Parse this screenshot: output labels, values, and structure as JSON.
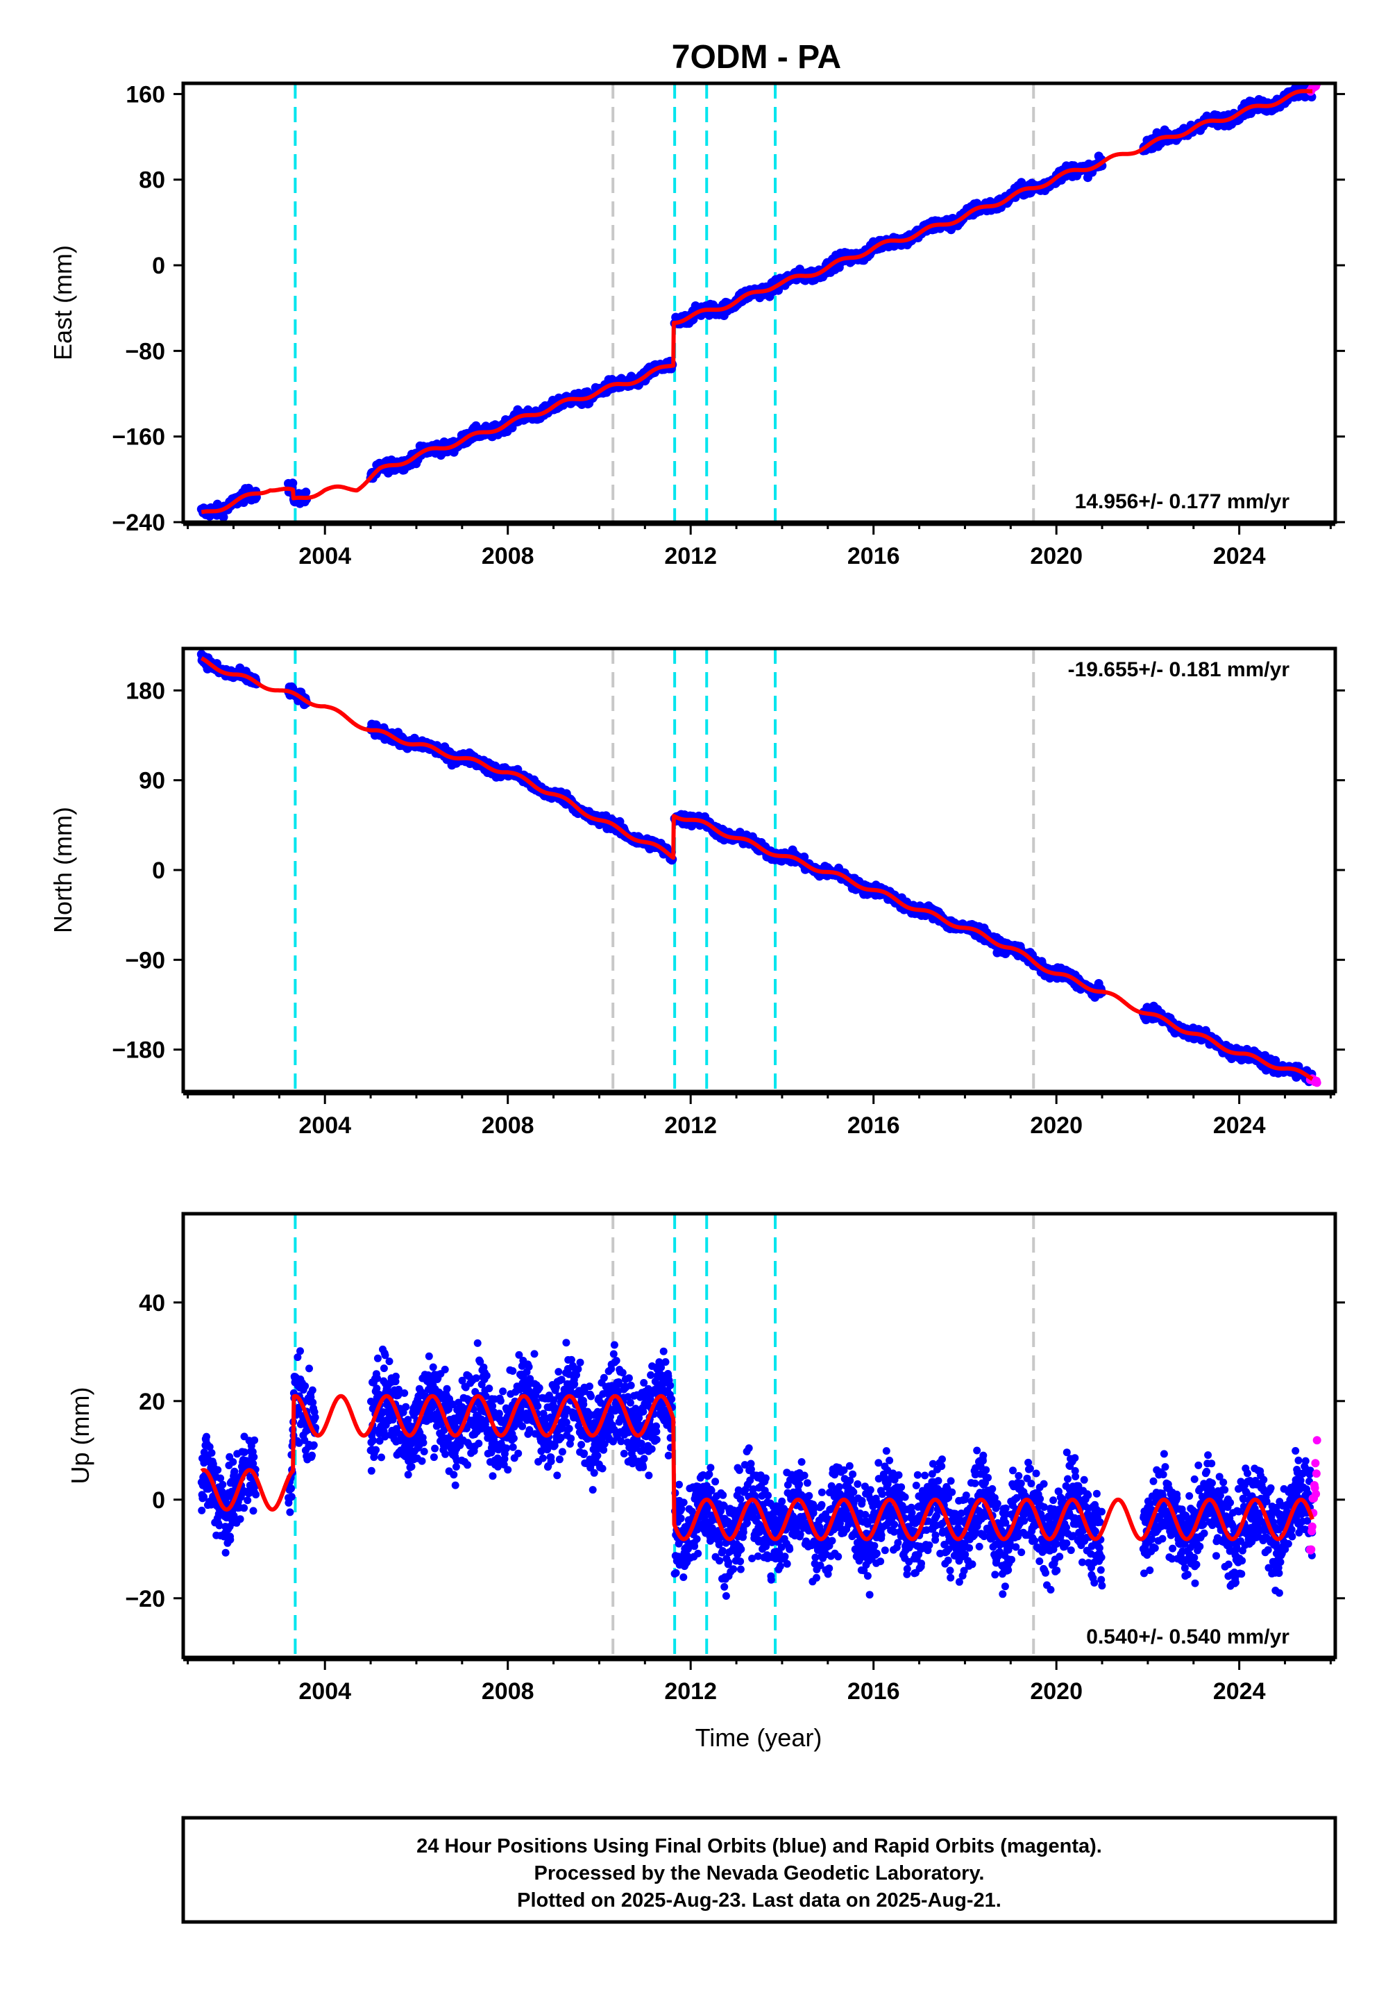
{
  "title": "7ODM - PA",
  "xlabel": "Time (year)",
  "footer": {
    "line1": "24 Hour Positions Using Final Orbits (blue) and Rapid Orbits (magenta).",
    "line2": "Processed by the Nevada Geodetic Laboratory.",
    "line3": "Plotted on 2025-Aug-23. Last data on 2025-Aug-21."
  },
  "colors": {
    "final": "#0000ff",
    "rapid": "#ff00ff",
    "model": "#ff0000",
    "equipment_change": "#00e5ee",
    "earthquake": "#c8c8c8"
  },
  "chart_data": [
    {
      "type": "scatter",
      "component": "East",
      "ylabel": "East (mm)",
      "rate": "14.956+/- 0.177 mm/yr",
      "xlim": [
        2000.9,
        2026.1
      ],
      "ylim": [
        -240,
        170
      ],
      "yticks": [
        -240,
        -160,
        -80,
        0,
        80,
        160
      ],
      "xticks": [
        2004,
        2008,
        2012,
        2016,
        2020,
        2024
      ],
      "model": {
        "x": [
          2001.3,
          2002.0,
          2002.8,
          2003.3,
          2003.31,
          2004.0,
          2004.7,
          2005.2,
          2006.0,
          2007.0,
          2008.0,
          2009.0,
          2010.0,
          2011.0,
          2011.62,
          2011.63,
          2012.4,
          2013.0,
          2013.85,
          2014.5,
          2015.0,
          2016.0,
          2017.0,
          2018.0,
          2019.0,
          2019.5,
          2020.0,
          2021.0,
          2022.0,
          2023.0,
          2024.0,
          2025.6
        ],
        "y": [
          -233,
          -222,
          -208,
          -212,
          -220,
          -210,
          -208,
          -192,
          -178,
          -164,
          -148,
          -132,
          -118,
          -104,
          -92,
          -52,
          -43,
          -34,
          -18,
          -10,
          -2,
          16,
          30,
          46,
          64,
          72,
          82,
          96,
          112,
          128,
          142,
          164
        ]
      },
      "final_data": {
        "segments": [
          [
            2001.3,
            2002.5
          ],
          [
            2003.2,
            2003.6
          ],
          [
            2005.0,
            2011.6
          ],
          [
            2011.65,
            2021.0
          ],
          [
            2021.9,
            2025.6
          ]
        ],
        "noise": 4
      },
      "rapid_data": {
        "x": [
          2025.55,
          2025.7
        ],
        "y": [
          163,
          170
        ]
      }
    },
    {
      "type": "scatter",
      "component": "North",
      "ylabel": "North (mm)",
      "rate": "-19.655+/- 0.181 mm/yr",
      "xlim": [
        2000.9,
        2026.1
      ],
      "ylim": [
        -222,
        222
      ],
      "yticks": [
        -180,
        -90,
        0,
        90,
        180
      ],
      "xticks": [
        2004,
        2008,
        2012,
        2016,
        2020,
        2024
      ],
      "model": {
        "x": [
          2001.3,
          2002.0,
          2003.0,
          2004.0,
          2005.0,
          2006.0,
          2007.0,
          2008.0,
          2009.0,
          2010.0,
          2011.0,
          2011.62,
          2011.63,
          2012.4,
          2013.0,
          2014.0,
          2015.0,
          2016.0,
          2017.0,
          2018.0,
          2019.0,
          2019.5,
          2020.0,
          2021.0,
          2022.0,
          2023.0,
          2024.0,
          2025.6
        ],
        "y": [
          210,
          196,
          180,
          164,
          140,
          126,
          112,
          98,
          76,
          50,
          28,
          14,
          56,
          44,
          32,
          14,
          -2,
          -20,
          -40,
          -58,
          -78,
          -92,
          -104,
          -122,
          -144,
          -164,
          -184,
          -208
        ]
      },
      "final_data": {
        "segments": [
          [
            2001.3,
            2002.5
          ],
          [
            2003.2,
            2003.6
          ],
          [
            2005.0,
            2011.6
          ],
          [
            2011.65,
            2021.0
          ],
          [
            2021.9,
            2025.6
          ]
        ],
        "noise": 4
      },
      "rapid_data": {
        "x": [
          2025.55,
          2025.7
        ],
        "y": [
          -209,
          -212
        ]
      }
    },
    {
      "type": "scatter",
      "component": "Up",
      "ylabel": "Up (mm)",
      "rate": "0.540+/- 0.540 mm/yr",
      "xlim": [
        2000.9,
        2026.1
      ],
      "ylim": [
        -32,
        58
      ],
      "yticks": [
        -20,
        0,
        20,
        40
      ],
      "xticks": [
        2004,
        2008,
        2012,
        2016,
        2020,
        2024
      ],
      "model": {
        "offsets": [
          [
            2001.3,
            2003.3,
            2
          ],
          [
            2003.32,
            2011.62,
            17
          ],
          [
            2011.64,
            2025.6,
            -4
          ]
        ],
        "amplitude": 4
      },
      "final_data": {
        "segments": [
          [
            2001.3,
            2002.5,
            2
          ],
          [
            2003.2,
            2003.8,
            18
          ],
          [
            2005.0,
            2011.6,
            15
          ],
          [
            2011.65,
            2021.0,
            -5
          ],
          [
            2021.9,
            2025.6,
            -2
          ]
        ],
        "noise": 8
      },
      "rapid_data": {
        "x": [
          2025.55,
          2025.7
        ],
        "y": [
          -12,
          8
        ]
      }
    }
  ],
  "event_lines": {
    "equipment_change": [
      2003.35,
      2011.65,
      2012.35,
      2013.85
    ],
    "earthquake": [
      2010.3,
      2019.5
    ]
  }
}
